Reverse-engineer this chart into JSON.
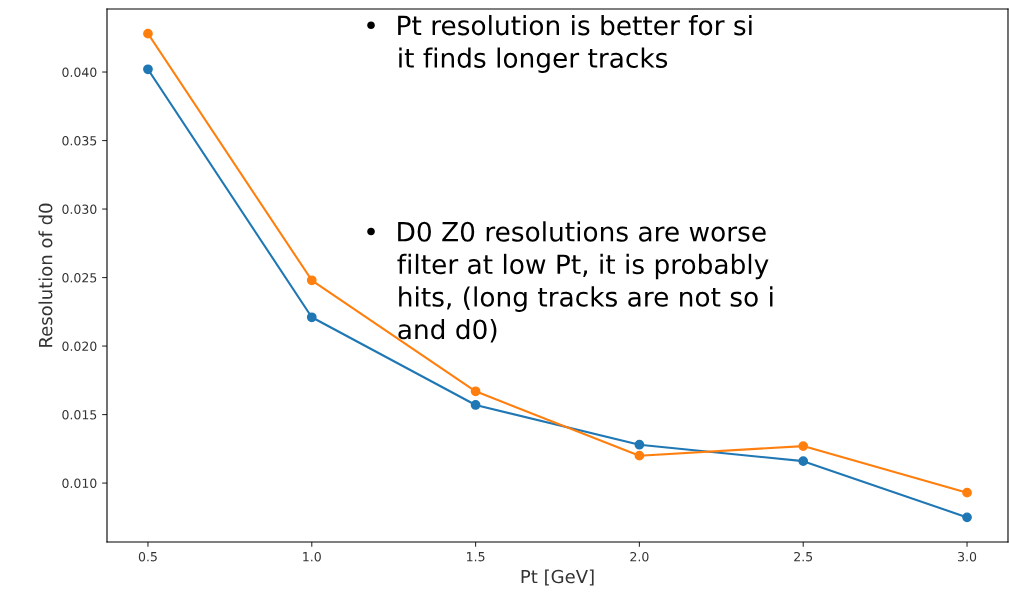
{
  "chart_data": {
    "type": "line",
    "xlabel": "Pt [GeV]",
    "ylabel": "Resolution of d0",
    "x": [
      0.5,
      1.0,
      1.5,
      2.0,
      2.5,
      3.0
    ],
    "series": [
      {
        "color": "#1f77b4",
        "values": [
          0.0402,
          0.0221,
          0.0157,
          0.0128,
          0.0116,
          0.0075
        ]
      },
      {
        "color": "#ff7f0e",
        "values": [
          0.0428,
          0.0248,
          0.0167,
          0.012,
          0.0127,
          0.0093
        ]
      }
    ],
    "xlim": [
      0.375,
      3.125
    ],
    "ylim": [
      0.0057,
      0.0446
    ],
    "xticks": [
      {
        "value": 0.5,
        "label": "0.5"
      },
      {
        "value": 1.0,
        "label": "1.0"
      },
      {
        "value": 1.5,
        "label": "1.5"
      },
      {
        "value": 2.0,
        "label": "2.0"
      },
      {
        "value": 2.5,
        "label": "2.5"
      },
      {
        "value": 3.0,
        "label": "3.0"
      }
    ],
    "yticks": [
      {
        "value": 0.01,
        "label": "0.010"
      },
      {
        "value": 0.015,
        "label": "0.015"
      },
      {
        "value": 0.02,
        "label": "0.020"
      },
      {
        "value": 0.025,
        "label": "0.025"
      },
      {
        "value": 0.03,
        "label": "0.030"
      },
      {
        "value": 0.035,
        "label": "0.035"
      },
      {
        "value": 0.04,
        "label": "0.040"
      }
    ],
    "marker": "circle",
    "grid": false,
    "legend": false,
    "annotations": [
      "•  Pt resolution is better for si\n    it finds longer tracks",
      "•  D0 Z0 resolutions are worse\n    filter at low Pt, it is probably\n    hits, (long tracks are not so i\n    and d0)"
    ]
  }
}
